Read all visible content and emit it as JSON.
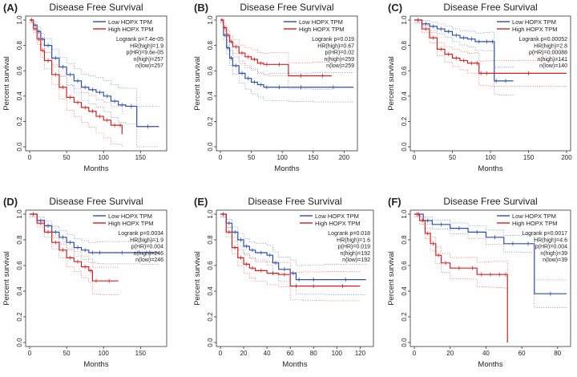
{
  "chart_data": [
    {
      "panel": "(A)",
      "type": "line",
      "title": "Disease Free Survival",
      "xlabel": "Months",
      "ylabel": "Percent survival",
      "xlim": [
        0,
        180
      ],
      "ylim": [
        0,
        1.0
      ],
      "xticks": [
        0,
        50,
        100,
        150
      ],
      "yticks": [
        0.0,
        0.2,
        0.4,
        0.6,
        0.8,
        1.0
      ],
      "legend_position": "top-right",
      "stats": [
        "Logrank p=7.4e-05",
        "HR(high)=1.9",
        "p(HR)=9.6e-05",
        "n(high)=257",
        "n(low)=257"
      ],
      "series": [
        {
          "name": "Low HOPX TPM",
          "color": "#2b4fa8",
          "x": [
            0,
            5,
            10,
            15,
            20,
            30,
            40,
            50,
            60,
            70,
            80,
            90,
            100,
            110,
            120,
            130,
            145,
            175
          ],
          "y": [
            1.0,
            0.96,
            0.91,
            0.85,
            0.8,
            0.7,
            0.63,
            0.57,
            0.52,
            0.47,
            0.45,
            0.43,
            0.4,
            0.36,
            0.33,
            0.32,
            0.16,
            0.16
          ]
        },
        {
          "name": "High HOPX TPM",
          "color": "#d62020",
          "x": [
            0,
            5,
            10,
            15,
            20,
            30,
            40,
            50,
            60,
            70,
            80,
            90,
            100,
            110,
            120,
            125
          ],
          "y": [
            1.0,
            0.93,
            0.85,
            0.76,
            0.68,
            0.57,
            0.47,
            0.39,
            0.35,
            0.31,
            0.28,
            0.24,
            0.21,
            0.17,
            0.17,
            0.1
          ]
        }
      ]
    },
    {
      "panel": "(B)",
      "type": "line",
      "title": "Disease Free Survival",
      "xlabel": "Months",
      "ylabel": "Percent survival",
      "xlim": [
        0,
        215
      ],
      "ylim": [
        0,
        1.0
      ],
      "xticks": [
        0,
        50,
        100,
        150,
        200
      ],
      "yticks": [
        0.0,
        0.2,
        0.4,
        0.6,
        0.8,
        1.0
      ],
      "legend_position": "top-right",
      "stats": [
        "Logrank p=0.019",
        "HR(high)=0.67",
        "p(HR)=0.02",
        "n(high)=259",
        "n(low)=259"
      ],
      "series": [
        {
          "name": "Low HOPX TPM",
          "color": "#2b4fa8",
          "x": [
            0,
            5,
            10,
            15,
            20,
            30,
            40,
            50,
            60,
            70,
            80,
            110,
            150,
            215
          ],
          "y": [
            1.0,
            0.88,
            0.78,
            0.7,
            0.64,
            0.58,
            0.54,
            0.51,
            0.49,
            0.47,
            0.47,
            0.47,
            0.47,
            0.47
          ]
        },
        {
          "name": "High HOPX TPM",
          "color": "#d62020",
          "x": [
            0,
            5,
            10,
            15,
            20,
            30,
            40,
            50,
            60,
            70,
            80,
            110,
            150,
            180
          ],
          "y": [
            1.0,
            0.94,
            0.88,
            0.83,
            0.79,
            0.74,
            0.71,
            0.69,
            0.66,
            0.65,
            0.65,
            0.56,
            0.56,
            0.56
          ]
        }
      ]
    },
    {
      "panel": "(C)",
      "type": "line",
      "title": "Disease Free Survival",
      "xlabel": "Months",
      "ylabel": "Percent survival",
      "xlim": [
        0,
        200
      ],
      "ylim": [
        0,
        1.0
      ],
      "xticks": [
        0,
        50,
        100,
        150,
        200
      ],
      "yticks": [
        0.0,
        0.2,
        0.4,
        0.6,
        0.8,
        1.0
      ],
      "legend_position": "top-right",
      "stats": [
        "Logrank p=0.00052",
        "HR(high)=2.8",
        "p(HR)=0.00088",
        "n(high)=141",
        "n(low)=140"
      ],
      "series": [
        {
          "name": "Low HOPX TPM",
          "color": "#2b4fa8",
          "x": [
            0,
            10,
            20,
            30,
            40,
            50,
            60,
            70,
            80,
            90,
            100,
            105,
            110,
            130
          ],
          "y": [
            1.0,
            0.97,
            0.95,
            0.93,
            0.91,
            0.88,
            0.86,
            0.85,
            0.83,
            0.83,
            0.83,
            0.52,
            0.52,
            0.52
          ]
        },
        {
          "name": "High HOPX TPM",
          "color": "#d62020",
          "x": [
            0,
            10,
            20,
            30,
            40,
            50,
            60,
            70,
            80,
            85,
            90,
            100,
            200
          ],
          "y": [
            1.0,
            0.93,
            0.86,
            0.77,
            0.73,
            0.7,
            0.68,
            0.66,
            0.66,
            0.58,
            0.58,
            0.58,
            0.58
          ]
        }
      ]
    },
    {
      "panel": "(D)",
      "type": "line",
      "title": "Disease Free Survival",
      "xlabel": "Months",
      "ylabel": "Percent survival",
      "xlim": [
        0,
        180
      ],
      "ylim": [
        0,
        1.0
      ],
      "xticks": [
        0,
        50,
        100,
        150
      ],
      "yticks": [
        0.0,
        0.2,
        0.4,
        0.6,
        0.8,
        1.0
      ],
      "legend_position": "top-right",
      "stats": [
        "Logrank p=0.0034",
        "HR(high)=1.9",
        "p(HR)=0.004",
        "n(high)=246",
        "n(low)=246"
      ],
      "series": [
        {
          "name": "Low HOPX TPM",
          "color": "#2b4fa8",
          "x": [
            0,
            10,
            20,
            30,
            40,
            50,
            60,
            70,
            80,
            90,
            100,
            150,
            175
          ],
          "y": [
            1.0,
            0.95,
            0.91,
            0.86,
            0.82,
            0.78,
            0.74,
            0.72,
            0.7,
            0.7,
            0.7,
            0.7,
            0.7
          ]
        },
        {
          "name": "High HOPX TPM",
          "color": "#d62020",
          "x": [
            0,
            10,
            20,
            30,
            40,
            50,
            60,
            70,
            80,
            85,
            95,
            120
          ],
          "y": [
            1.0,
            0.93,
            0.86,
            0.78,
            0.72,
            0.66,
            0.63,
            0.59,
            0.56,
            0.48,
            0.48,
            0.48
          ]
        }
      ]
    },
    {
      "panel": "(E)",
      "type": "line",
      "title": "Disease Free Survival",
      "xlabel": "Months",
      "ylabel": "Percent survival",
      "xlim": [
        0,
        128
      ],
      "ylim": [
        0,
        1.0
      ],
      "xticks": [
        0,
        20,
        40,
        60,
        80,
        100,
        120
      ],
      "yticks": [
        0.0,
        0.2,
        0.4,
        0.6,
        0.8,
        1.0
      ],
      "legend_position": "top-right",
      "stats": [
        "Logrank p=0.018",
        "HR(high)=1.6",
        "p(HR)=0.019",
        "n(high)=192",
        "n(low)=192"
      ],
      "series": [
        {
          "name": "Low HOPX TPM",
          "color": "#2b4fa8",
          "x": [
            0,
            5,
            10,
            15,
            20,
            25,
            30,
            40,
            45,
            50,
            60,
            65,
            70,
            90,
            125
          ],
          "y": [
            1.0,
            0.93,
            0.86,
            0.8,
            0.75,
            0.72,
            0.7,
            0.68,
            0.62,
            0.57,
            0.54,
            0.49,
            0.49,
            0.49,
            0.49
          ]
        },
        {
          "name": "High HOPX TPM",
          "color": "#d62020",
          "x": [
            0,
            5,
            10,
            15,
            20,
            25,
            30,
            40,
            50,
            60,
            70,
            90,
            120
          ],
          "y": [
            1.0,
            0.86,
            0.74,
            0.66,
            0.61,
            0.58,
            0.56,
            0.54,
            0.53,
            0.44,
            0.44,
            0.44,
            0.44
          ]
        }
      ]
    },
    {
      "panel": "(F)",
      "type": "line",
      "title": "Disease Free Survival",
      "xlabel": "Months",
      "ylabel": "Percent survival",
      "xlim": [
        0,
        85
      ],
      "ylim": [
        0,
        1.0
      ],
      "xticks": [
        0,
        20,
        40,
        60,
        80
      ],
      "yticks": [
        0.0,
        0.2,
        0.4,
        0.6,
        0.8,
        1.0
      ],
      "legend_position": "top-right",
      "stats": [
        "Logrank p=0.0017",
        "HR(high)=4.6",
        "p(HR)=0.004",
        "n(high)=39",
        "n(low)=39"
      ],
      "series": [
        {
          "name": "Low HOPX TPM",
          "color": "#2b4fa8",
          "x": [
            0,
            5,
            10,
            20,
            30,
            40,
            50,
            60,
            67,
            85
          ],
          "y": [
            1.0,
            0.95,
            0.92,
            0.89,
            0.86,
            0.82,
            0.77,
            0.77,
            0.38,
            0.38
          ]
        },
        {
          "name": "High HOPX TPM",
          "color": "#d62020",
          "x": [
            0,
            3,
            6,
            9,
            12,
            15,
            20,
            30,
            35,
            40,
            45,
            50,
            52
          ],
          "y": [
            1.0,
            0.95,
            0.85,
            0.77,
            0.68,
            0.62,
            0.58,
            0.58,
            0.53,
            0.53,
            0.53,
            0.53,
            0.0
          ]
        }
      ]
    }
  ]
}
